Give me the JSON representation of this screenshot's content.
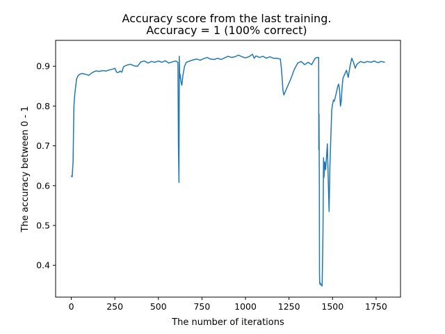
{
  "chart_data": {
    "type": "line",
    "title": "Accuracy score from the last training.",
    "subtitle": "Accuracy = 1 (100% correct)",
    "xlabel": "The number of iterations",
    "ylabel": "The accuracy between 0 - 1",
    "xlim": [
      -90,
      1890
    ],
    "ylim": [
      0.32,
      0.965
    ],
    "xticks": [
      0,
      250,
      500,
      750,
      1000,
      1250,
      1500,
      1750
    ],
    "yticks": [
      0.4,
      0.5,
      0.6,
      0.7,
      0.8,
      0.9
    ],
    "grid": false,
    "line_color": "#1f77b4",
    "series": [
      {
        "x": [
          0,
          5,
          10,
          15,
          20,
          30,
          40,
          50,
          60,
          80,
          100,
          120,
          140,
          150,
          160,
          180,
          200,
          220,
          240,
          250,
          260,
          270,
          280,
          290,
          300,
          320,
          340,
          360,
          380,
          400,
          420,
          440,
          460,
          480,
          500,
          520,
          540,
          560,
          580,
          600,
          612,
          615,
          618,
          620,
          622,
          625,
          630,
          635,
          640,
          650,
          660,
          680,
          700,
          720,
          740,
          760,
          780,
          800,
          820,
          840,
          860,
          880,
          900,
          920,
          940,
          960,
          980,
          1000,
          1020,
          1040,
          1050,
          1060,
          1080,
          1100,
          1120,
          1140,
          1160,
          1180,
          1200,
          1205,
          1210,
          1215,
          1220,
          1230,
          1240,
          1260,
          1280,
          1300,
          1320,
          1340,
          1360,
          1380,
          1400,
          1410,
          1420,
          1421,
          1422,
          1424,
          1425,
          1426,
          1428,
          1430,
          1435,
          1440,
          1445,
          1448,
          1450,
          1452,
          1455,
          1460,
          1465,
          1470,
          1475,
          1480,
          1485,
          1490,
          1495,
          1500,
          1505,
          1510,
          1520,
          1530,
          1535,
          1540,
          1545,
          1550,
          1555,
          1560,
          1570,
          1580,
          1590,
          1600,
          1610,
          1620,
          1630,
          1640,
          1660,
          1680,
          1700,
          1720,
          1740,
          1760,
          1780,
          1800
        ],
        "values": [
          0.625,
          0.622,
          0.66,
          0.8,
          0.83,
          0.868,
          0.877,
          0.88,
          0.882,
          0.88,
          0.877,
          0.884,
          0.888,
          0.888,
          0.887,
          0.889,
          0.888,
          0.891,
          0.893,
          0.895,
          0.885,
          0.884,
          0.888,
          0.885,
          0.899,
          0.903,
          0.905,
          0.901,
          0.9,
          0.911,
          0.913,
          0.908,
          0.912,
          0.91,
          0.913,
          0.91,
          0.914,
          0.908,
          0.911,
          0.913,
          0.91,
          0.7,
          0.608,
          0.925,
          0.87,
          0.88,
          0.86,
          0.852,
          0.875,
          0.9,
          0.91,
          0.913,
          0.916,
          0.918,
          0.915,
          0.919,
          0.922,
          0.918,
          0.917,
          0.92,
          0.917,
          0.921,
          0.925,
          0.922,
          0.924,
          0.928,
          0.924,
          0.921,
          0.924,
          0.93,
          0.92,
          0.926,
          0.922,
          0.925,
          0.92,
          0.924,
          0.92,
          0.92,
          0.918,
          0.9,
          0.872,
          0.84,
          0.828,
          0.838,
          0.848,
          0.868,
          0.892,
          0.908,
          0.912,
          0.904,
          0.91,
          0.904,
          0.92,
          0.922,
          0.922,
          0.69,
          0.78,
          0.6,
          0.38,
          0.355,
          0.352,
          0.355,
          0.35,
          0.348,
          0.48,
          0.67,
          0.62,
          0.63,
          0.66,
          0.64,
          0.67,
          0.705,
          0.62,
          0.535,
          0.65,
          0.72,
          0.79,
          0.805,
          0.815,
          0.812,
          0.83,
          0.85,
          0.855,
          0.842,
          0.8,
          0.812,
          0.85,
          0.87,
          0.88,
          0.89,
          0.872,
          0.9,
          0.92,
          0.91,
          0.895,
          0.905,
          0.912,
          0.909,
          0.912,
          0.91,
          0.913,
          0.909,
          0.912,
          0.91
        ]
      }
    ]
  }
}
